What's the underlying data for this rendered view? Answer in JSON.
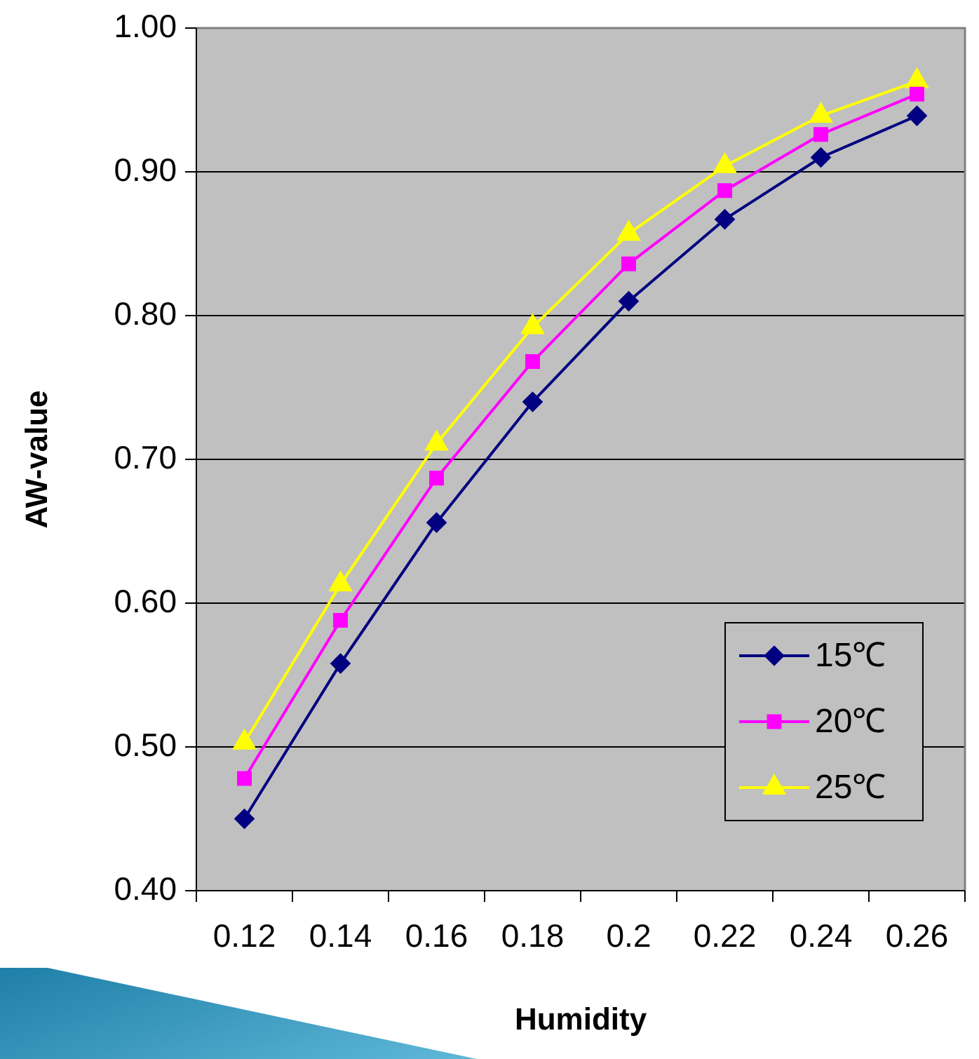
{
  "chart_data": {
    "type": "line",
    "xlabel": "Humidity",
    "ylabel": "AW-value",
    "categories": [
      "0.12",
      "0.14",
      "0.16",
      "0.18",
      "0.2",
      "0.22",
      "0.24",
      "0.26"
    ],
    "series": [
      {
        "name": "15℃",
        "color": "#000080",
        "marker": "diamond",
        "values": [
          0.45,
          0.558,
          0.656,
          0.74,
          0.81,
          0.867,
          0.91,
          0.939
        ]
      },
      {
        "name": "20℃",
        "color": "#ff00ff",
        "marker": "square",
        "values": [
          0.478,
          0.588,
          0.687,
          0.768,
          0.836,
          0.887,
          0.926,
          0.954
        ]
      },
      {
        "name": "25℃",
        "color": "#ffff00",
        "marker": "triangle",
        "values": [
          0.503,
          0.613,
          0.711,
          0.792,
          0.857,
          0.904,
          0.939,
          0.963
        ]
      }
    ],
    "ylim": [
      0.4,
      1.0
    ],
    "yticks": [
      {
        "value": 0.4,
        "label": "0.40"
      },
      {
        "value": 0.5,
        "label": "0.50"
      },
      {
        "value": 0.6,
        "label": "0.60"
      },
      {
        "value": 0.7,
        "label": "0.70"
      },
      {
        "value": 0.8,
        "label": "0.80"
      },
      {
        "value": 0.9,
        "label": "0.90"
      },
      {
        "value": 1.0,
        "label": "1.00"
      }
    ],
    "grid": "y",
    "legend": "bottom right"
  }
}
